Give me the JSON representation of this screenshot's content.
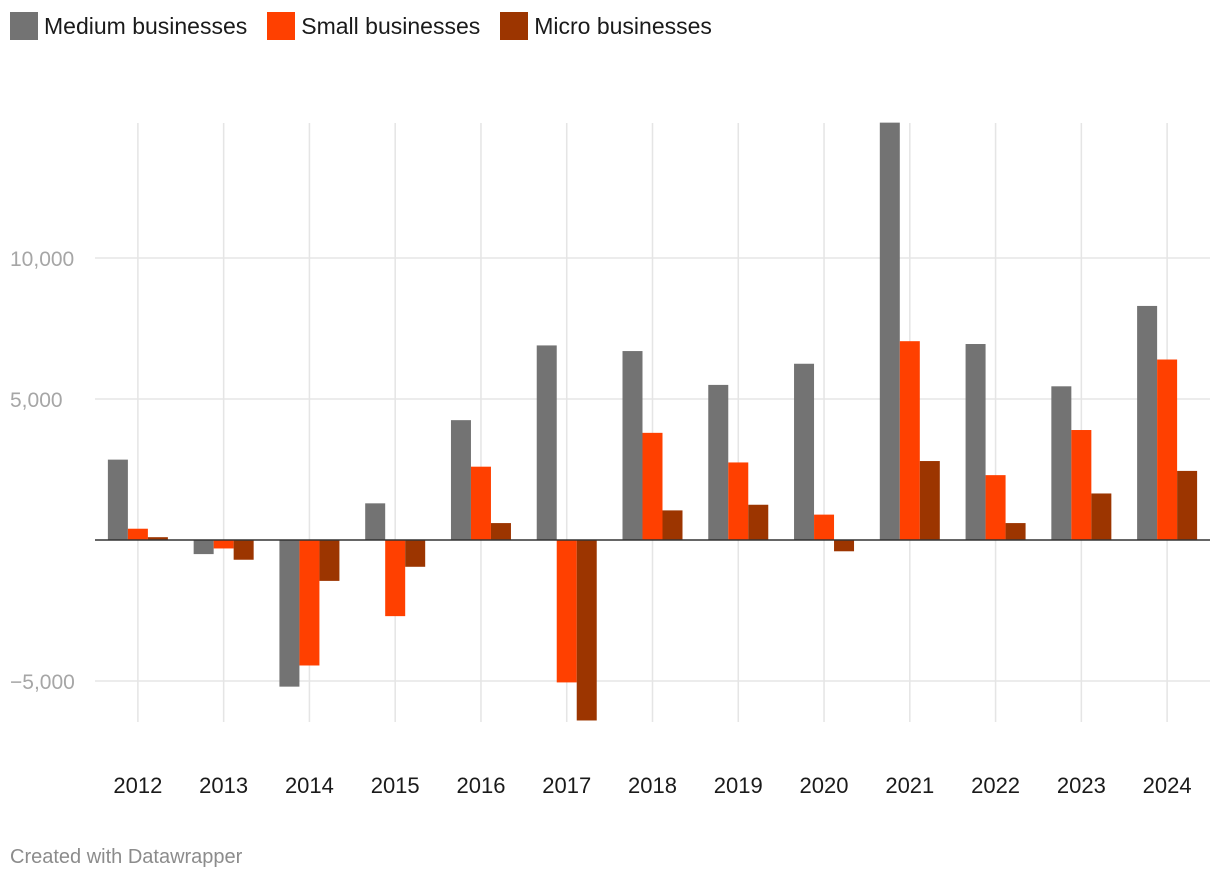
{
  "legend": {
    "items": [
      {
        "label": "Medium businesses",
        "color": "#737373"
      },
      {
        "label": "Small businesses",
        "color": "#ff4000"
      },
      {
        "label": "Micro businesses",
        "color": "#9c3500"
      }
    ]
  },
  "credit": "Created with Datawrapper",
  "chart_data": {
    "type": "bar",
    "categories": [
      "2012",
      "2013",
      "2014",
      "2015",
      "2016",
      "2017",
      "2018",
      "2019",
      "2020",
      "2021",
      "2022",
      "2023",
      "2024"
    ],
    "series": [
      {
        "name": "Medium businesses",
        "color": "#737373",
        "values": [
          2850,
          -500,
          -5200,
          1300,
          4250,
          6900,
          6700,
          5500,
          6250,
          14800,
          6950,
          5450,
          8300
        ]
      },
      {
        "name": "Small businesses",
        "color": "#ff4000",
        "values": [
          400,
          -300,
          -4450,
          -2700,
          2600,
          -5050,
          3800,
          2750,
          900,
          7050,
          2300,
          3900,
          6400
        ]
      },
      {
        "name": "Micro businesses",
        "color": "#9c3500",
        "values": [
          100,
          -700,
          -1450,
          -950,
          600,
          -6400,
          1050,
          1250,
          -400,
          2800,
          600,
          1650,
          2450
        ]
      }
    ],
    "yticks": [
      {
        "value": 10000,
        "label": "10,000"
      },
      {
        "value": 5000,
        "label": "5,000"
      },
      {
        "value": -5000,
        "label": "−5,000"
      }
    ],
    "ylim": [
      -6400,
      14800
    ],
    "grid": true,
    "legend_position": "top-left"
  }
}
